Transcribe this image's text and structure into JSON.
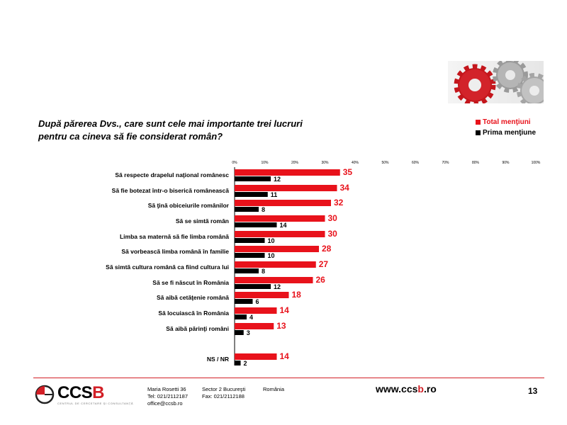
{
  "question": {
    "line1": "După părerea Dvs., care sunt cele mai importante trei lucruri",
    "line2": "pentru ca cineva să fie considerat român?"
  },
  "legend": {
    "total": "Total menţiuni",
    "prima": "Prima menţiune"
  },
  "colors": {
    "total": "#e8121b",
    "prima": "#000000",
    "accent": "#d21f26"
  },
  "chart_data": {
    "type": "bar",
    "orientation": "horizontal",
    "xlim": [
      0,
      100
    ],
    "x_ticks": [
      "0%",
      "10%",
      "20%",
      "30%",
      "40%",
      "50%",
      "60%",
      "70%",
      "80%",
      "90%",
      "100%"
    ],
    "categories": [
      "Să respecte drapelul naţional românesc",
      "Să fie botezat într-o biserică românească",
      "Să ţină obiceiurile românilor",
      "Să se simtă român",
      "Limba sa maternă să fie limba română",
      "Să vorbească limba română în familie",
      "Să simtă cultura română ca fiind cultura lui",
      "Să se fi născut în România",
      "Să aibă cetăţenie română",
      "Să locuiască în România",
      "Să aibă părinţi români",
      "NS / NR"
    ],
    "series": [
      {
        "name": "Total menţiuni",
        "values": [
          35,
          34,
          32,
          30,
          30,
          28,
          27,
          26,
          18,
          14,
          13,
          14
        ]
      },
      {
        "name": "Prima menţiune",
        "values": [
          12,
          11,
          8,
          14,
          10,
          10,
          8,
          12,
          6,
          4,
          3,
          2
        ]
      }
    ],
    "legend_position": "top-right",
    "grid": false
  },
  "footer": {
    "logo": {
      "name_black": "CCS",
      "name_red": "B",
      "tagline": "CENTRUL DE CERCETARE ŞI CONSULTANŢĂ"
    },
    "address": {
      "street": "Maria Rosetti 36",
      "sector": "Sector 2 Bucureşti",
      "country": "România"
    },
    "tel": "Tel: 021/2112187",
    "fax": "Fax: 021/2112188",
    "email": "office@ccsb.ro",
    "website_pre": "www.ccs",
    "website_red": "b",
    "website_post": ".ro",
    "page_number": "13"
  }
}
